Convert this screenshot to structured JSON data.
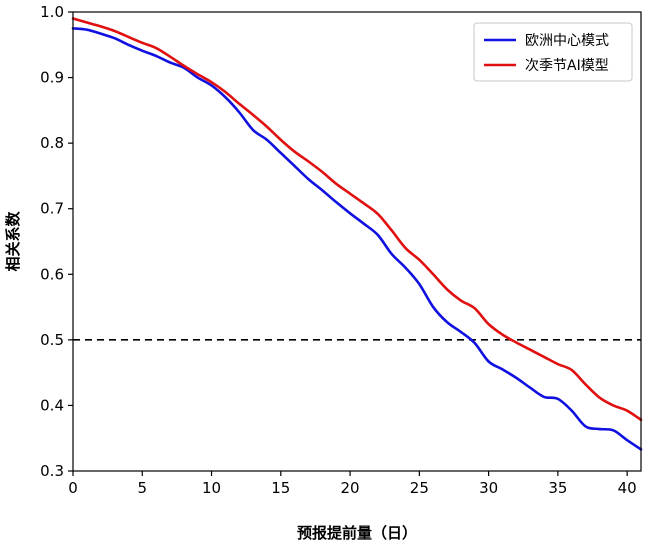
{
  "chart_data": {
    "type": "line",
    "title": "",
    "xlabel": "预报提前量（日）",
    "ylabel": "相关系数",
    "xlim": [
      0,
      41
    ],
    "ylim": [
      0.3,
      1.0
    ],
    "xticks": [
      0,
      5,
      10,
      15,
      20,
      25,
      30,
      35,
      40
    ],
    "yticks": [
      0.3,
      0.4,
      0.5,
      0.6,
      0.7,
      0.8,
      0.9,
      1.0
    ],
    "xtick_labels": [
      "0",
      "5",
      "10",
      "15",
      "20",
      "25",
      "30",
      "35",
      "40"
    ],
    "ytick_labels": [
      "0.3",
      "0.4",
      "0.5",
      "0.6",
      "0.7",
      "0.8",
      "0.9",
      "1.0"
    ],
    "threshold": 0.5,
    "legend_position": "top-right",
    "x": [
      0,
      1,
      2,
      3,
      4,
      5,
      6,
      7,
      8,
      9,
      10,
      11,
      12,
      13,
      14,
      15,
      16,
      17,
      18,
      19,
      20,
      21,
      22,
      23,
      24,
      25,
      26,
      27,
      28,
      29,
      30,
      31,
      32,
      33,
      34,
      35,
      36,
      37,
      38,
      39,
      40,
      41
    ],
    "series": [
      {
        "name": "欧洲中心模式",
        "color": "#1010e0",
        "values": [
          0.975,
          0.973,
          0.967,
          0.96,
          0.95,
          0.941,
          0.933,
          0.923,
          0.915,
          0.9,
          0.888,
          0.87,
          0.847,
          0.82,
          0.805,
          0.785,
          0.765,
          0.745,
          0.728,
          0.71,
          0.693,
          0.677,
          0.66,
          0.631,
          0.61,
          0.585,
          0.55,
          0.527,
          0.512,
          0.495,
          0.467,
          0.455,
          0.442,
          0.427,
          0.413,
          0.41,
          0.392,
          0.368,
          0.364,
          0.362,
          0.347,
          0.333
        ]
      },
      {
        "name": "次季节AI模型",
        "color": "#e01010",
        "values": [
          0.99,
          0.984,
          0.978,
          0.971,
          0.962,
          0.953,
          0.945,
          0.932,
          0.918,
          0.905,
          0.893,
          0.878,
          0.86,
          0.843,
          0.825,
          0.805,
          0.787,
          0.772,
          0.756,
          0.738,
          0.723,
          0.708,
          0.692,
          0.667,
          0.64,
          0.622,
          0.6,
          0.577,
          0.56,
          0.548,
          0.524,
          0.508,
          0.496,
          0.485,
          0.474,
          0.463,
          0.454,
          0.432,
          0.412,
          0.4,
          0.392,
          0.378
        ]
      }
    ]
  }
}
